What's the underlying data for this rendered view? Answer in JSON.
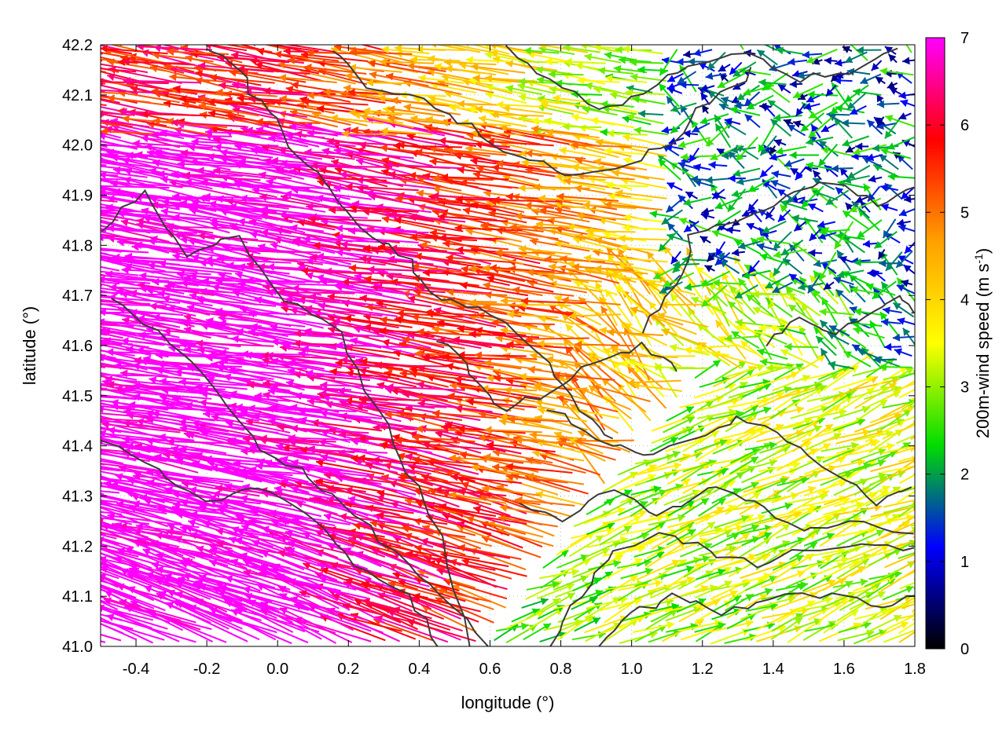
{
  "chart_data": {
    "type": "vector_field",
    "xlabel": "longitude (°)",
    "ylabel": "latitude (°)",
    "xlim": [
      -0.5,
      1.8
    ],
    "ylim": [
      41.0,
      42.2
    ],
    "x_ticks": [
      "-0.4",
      "-0.2",
      "0.0",
      "0.2",
      "0.4",
      "0.6",
      "0.8",
      "1.0",
      "1.2",
      "1.4",
      "1.6",
      "1.8"
    ],
    "y_ticks": [
      "41.0",
      "41.1",
      "41.2",
      "41.3",
      "41.4",
      "41.5",
      "41.6",
      "41.7",
      "41.8",
      "41.9",
      "42.0",
      "42.1",
      "42.2"
    ],
    "grid": "dotted",
    "colorbar": {
      "label_main": "200m-wind speed (m s",
      "label_sup": "-1",
      "label_end": ")",
      "range": [
        0,
        7
      ],
      "ticks": [
        "0",
        "1",
        "2",
        "3",
        "4",
        "5",
        "6",
        "7"
      ],
      "palette": [
        "#000000",
        "#0000ff",
        "#00dd00",
        "#ffff00",
        "#ffa000",
        "#ff0000",
        "#ff00ff"
      ]
    },
    "wind_regimes": [
      {
        "region": "western and central",
        "direction": "westward",
        "typical_speed": 7
      },
      {
        "region": "north-central band",
        "direction": "westward",
        "typical_speed": 5
      },
      {
        "region": "south-eastern",
        "direction": "eastward",
        "typical_speed": 2.5
      },
      {
        "region": "north-eastern",
        "direction": "variable",
        "typical_speed": 1
      }
    ],
    "contour_color": "#3a3a3a"
  }
}
